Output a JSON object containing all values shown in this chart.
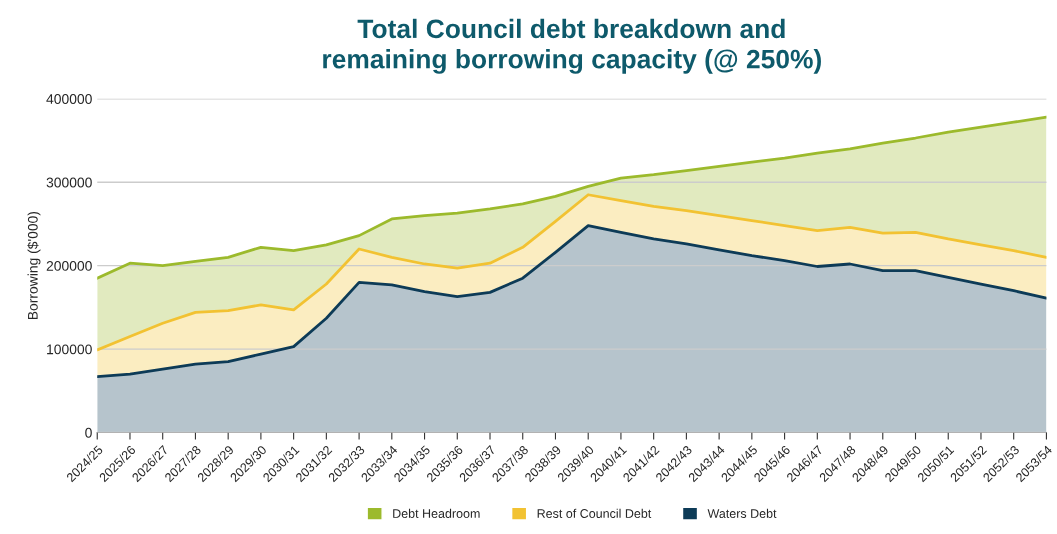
{
  "chart_data": {
    "type": "area",
    "title": "Total Council debt breakdown and\nremaining borrowing capacity (@ 250%)",
    "ylabel": "Borrowing ($'000)",
    "stacked": true,
    "categories": [
      "2024/25",
      "2025/26",
      "2026/27",
      "2027/28",
      "2028/29",
      "2029/30",
      "2030/31",
      "2031/32",
      "2032/33",
      "2033/34",
      "2034/35",
      "2035/36",
      "2036/37",
      "2037/38",
      "2038/39",
      "2039/40",
      "2040/41",
      "2041/42",
      "2042/43",
      "2043/44",
      "2044/45",
      "2045/46",
      "2046/47",
      "2047/48",
      "2048/49",
      "2049/50",
      "2050/51",
      "2051/52",
      "2052/53",
      "2053/54"
    ],
    "series": [
      {
        "name": "Waters Debt",
        "color": "#0d3b57",
        "values": [
          67000,
          70000,
          76000,
          82000,
          85000,
          94000,
          103000,
          137000,
          180000,
          177000,
          169000,
          163000,
          168000,
          185000,
          216000,
          248000,
          240000,
          232000,
          226000,
          219000,
          212000,
          206000,
          199000,
          202000,
          194000,
          194000,
          186000,
          178000,
          170000,
          161000
        ]
      },
      {
        "name": "Rest of Council Debt",
        "color": "#f2c232",
        "values": [
          32000,
          45000,
          55000,
          62000,
          61000,
          59000,
          44000,
          41000,
          40000,
          33000,
          33000,
          34000,
          35000,
          37000,
          37000,
          37000,
          38000,
          39000,
          40000,
          41000,
          42000,
          42000,
          43000,
          44000,
          45000,
          46000,
          46000,
          47000,
          48000,
          49000
        ]
      },
      {
        "name": "Debt Headroom",
        "color": "#9cba2c",
        "values": [
          86000,
          88000,
          69000,
          61000,
          64000,
          69000,
          71000,
          47000,
          16000,
          46000,
          58000,
          66000,
          65000,
          52000,
          30000,
          10000,
          27000,
          38000,
          48000,
          59000,
          70000,
          81000,
          93000,
          94000,
          108000,
          113000,
          128000,
          141000,
          154000,
          168000
        ]
      }
    ],
    "ylim": [
      0,
      400000
    ],
    "yticks": [
      0,
      100000,
      200000,
      300000,
      400000
    ],
    "grid": "y",
    "legend": "bottom"
  }
}
